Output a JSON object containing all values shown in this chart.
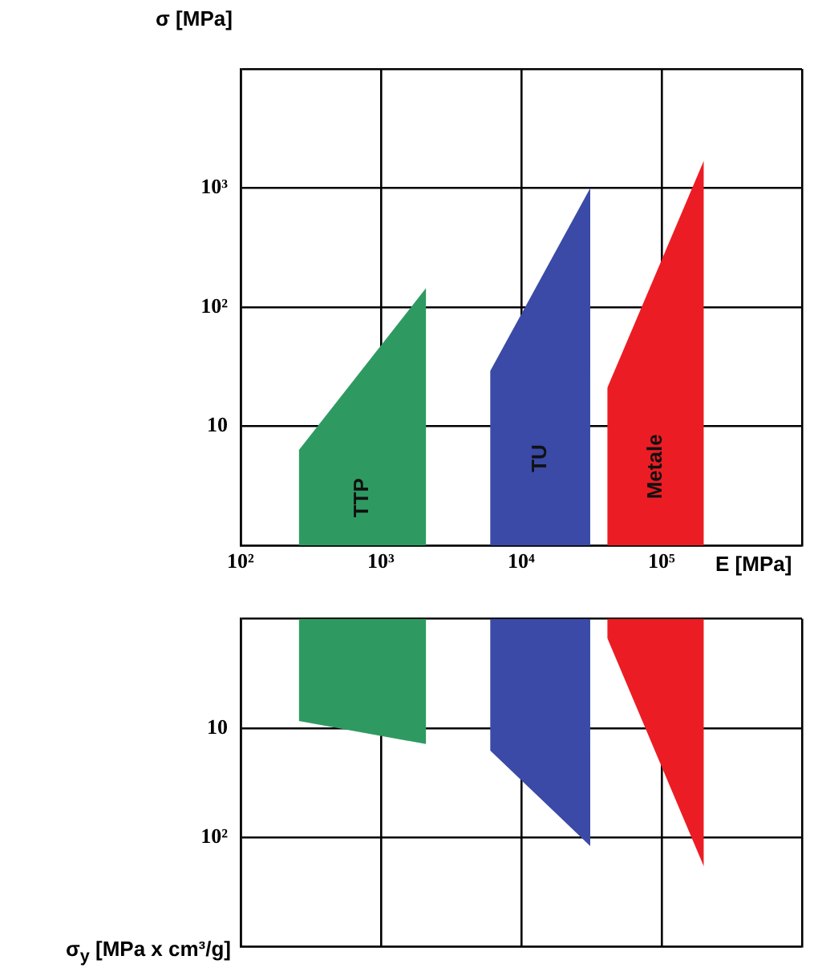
{
  "chart_data": [
    {
      "type": "area",
      "ylabel": "σ [MPa]",
      "xlabel": "E [MPa]",
      "log": "xy",
      "grid": true,
      "legend": false,
      "xlim": [
        100,
        1000000
      ],
      "xticks": [
        {
          "value": 100,
          "label": "10²"
        },
        {
          "value": 1000,
          "label": "10³"
        },
        {
          "value": 10000,
          "label": "10⁴"
        },
        {
          "value": 100000,
          "label": "10⁵"
        },
        {
          "value": 1000000,
          "label": null
        }
      ],
      "ylim": [
        1,
        10000
      ],
      "yticks": [
        {
          "value": 1,
          "label": null
        },
        10,
        {
          "value": 100,
          "label": "10²"
        },
        {
          "value": 1000,
          "label": "10³"
        },
        {
          "value": 10000,
          "label": null
        }
      ],
      "series": [
        {
          "name": "TTP",
          "color": "#2e9a62",
          "x": [
            260,
            2100
          ],
          "values": [
            6.3,
            145
          ]
        },
        {
          "name": "TU",
          "color": "#3a4aa6",
          "x": [
            6000,
            31000
          ],
          "values": [
            29,
            1000
          ]
        },
        {
          "name": "Metale",
          "color": "#ec1c24",
          "x": [
            41000,
            200000
          ],
          "values": [
            21,
            1700
          ]
        }
      ]
    },
    {
      "type": "area",
      "ylabel": "σ$_{y}$ [MPa x cm³/g]",
      "log": "xy",
      "grid": true,
      "legend": false,
      "tick_labels": "y",
      "xlim": [
        100,
        1000000
      ],
      "xticks": [
        100,
        1000,
        10000,
        100000,
        1000000
      ],
      "ylim": [
        1000,
        1
      ],
      "yticks": [
        {
          "value": 1,
          "label": null
        },
        10,
        {
          "value": 100,
          "label": "10²"
        },
        {
          "value": 1000,
          "label": null
        }
      ],
      "series": [
        {
          "color": "#2e9a62",
          "x": [
            260,
            2100
          ],
          "values": [
            8.6,
            14
          ]
        },
        {
          "color": "#3a4aa6",
          "x": [
            6000,
            31000
          ],
          "values": [
            16,
            120
          ]
        },
        {
          "color": "#ec1c24",
          "x": [
            41000,
            200000
          ],
          "values": [
            1.5,
            185
          ]
        }
      ]
    }
  ]
}
